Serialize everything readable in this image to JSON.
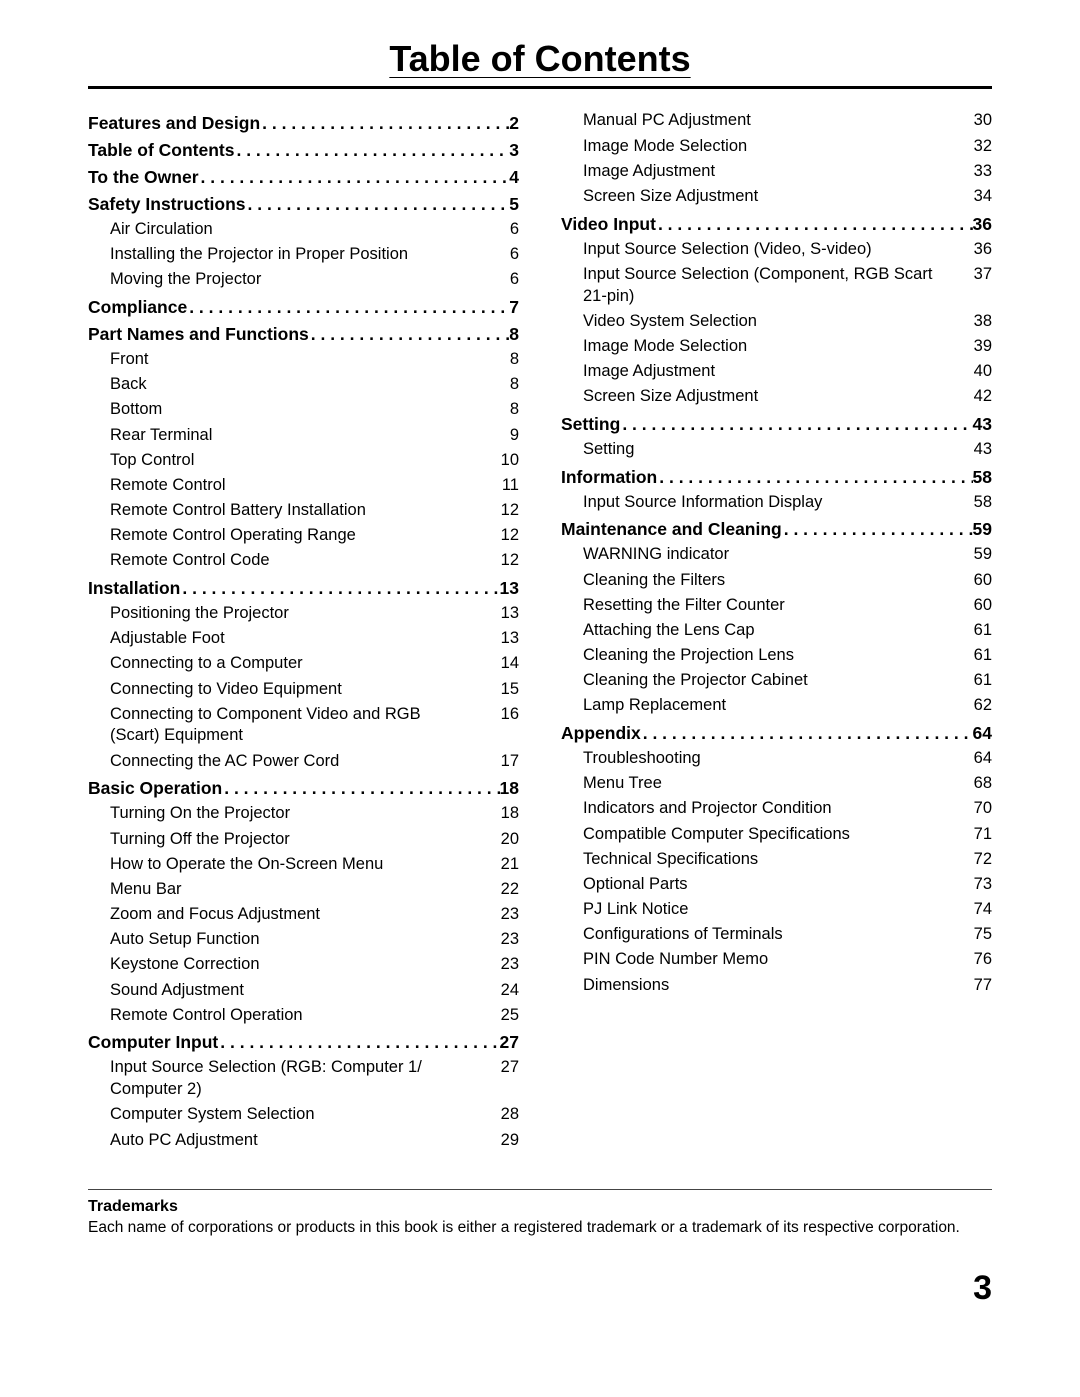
{
  "title": "Table of Contents",
  "page_number": "3",
  "trademarks": {
    "heading": "Trademarks",
    "text": "Each name of corporations or products in this book is either a registered trademark or a trademark of its respective corporation."
  },
  "left": [
    {
      "type": "section",
      "label": "Features and Design",
      "page": "2"
    },
    {
      "type": "section",
      "label": "Table of Contents",
      "page": "3"
    },
    {
      "type": "section",
      "label": "To the Owner",
      "page": "4"
    },
    {
      "type": "section",
      "label": "Safety Instructions",
      "page": "5"
    },
    {
      "type": "entry",
      "label": "Air Circulation",
      "page": "6"
    },
    {
      "type": "entry",
      "label": "Installing the Projector in Proper Position",
      "page": "6"
    },
    {
      "type": "entry",
      "label": "Moving the Projector",
      "page": "6"
    },
    {
      "type": "section",
      "label": "Compliance",
      "page": "7"
    },
    {
      "type": "section",
      "label": "Part Names and Functions",
      "page": "8"
    },
    {
      "type": "entry",
      "label": "Front",
      "page": "8"
    },
    {
      "type": "entry",
      "label": "Back",
      "page": "8"
    },
    {
      "type": "entry",
      "label": "Bottom",
      "page": "8"
    },
    {
      "type": "entry",
      "label": "Rear Terminal",
      "page": "9"
    },
    {
      "type": "entry",
      "label": "Top Control",
      "page": "10"
    },
    {
      "type": "entry",
      "label": "Remote Control",
      "page": "11"
    },
    {
      "type": "entry",
      "label": "Remote Control Battery Installation",
      "page": "12"
    },
    {
      "type": "entry",
      "label": "Remote Control Operating Range",
      "page": "12"
    },
    {
      "type": "entry",
      "label": "Remote Control Code",
      "page": "12"
    },
    {
      "type": "section",
      "label": "Installation",
      "page": "13"
    },
    {
      "type": "entry",
      "label": "Positioning the Projector",
      "page": "13"
    },
    {
      "type": "entry",
      "label": "Adjustable Foot",
      "page": "13"
    },
    {
      "type": "entry",
      "label": "Connecting to a Computer",
      "page": "14"
    },
    {
      "type": "entry",
      "label": "Connecting to Video Equipment",
      "page": "15"
    },
    {
      "type": "entry",
      "label": "Connecting to Component Video and RGB (Scart) Equipment",
      "page": "16"
    },
    {
      "type": "entry",
      "label": "Connecting the AC Power Cord",
      "page": "17"
    },
    {
      "type": "section",
      "label": "Basic Operation",
      "page": "18"
    },
    {
      "type": "entry",
      "label": "Turning On the Projector",
      "page": "18"
    },
    {
      "type": "entry",
      "label": "Turning Off the Projector",
      "page": "20"
    },
    {
      "type": "entry",
      "label": "How to Operate the On-Screen Menu",
      "page": "21"
    },
    {
      "type": "entry",
      "label": "Menu Bar",
      "page": "22"
    },
    {
      "type": "entry",
      "label": "Zoom and Focus Adjustment",
      "page": "23"
    },
    {
      "type": "entry",
      "label": "Auto Setup Function",
      "page": "23"
    },
    {
      "type": "entry",
      "label": "Keystone Correction",
      "page": "23"
    },
    {
      "type": "entry",
      "label": "Sound Adjustment",
      "page": "24"
    },
    {
      "type": "entry",
      "label": "Remote Control Operation",
      "page": "25"
    },
    {
      "type": "section",
      "label": "Computer Input",
      "page": "27"
    },
    {
      "type": "entry",
      "label": "Input Source Selection (RGB: Computer 1/ Computer 2)",
      "page": "27"
    },
    {
      "type": "entry",
      "label": "Computer System Selection",
      "page": "28"
    },
    {
      "type": "entry",
      "label": "Auto PC Adjustment",
      "page": "29"
    }
  ],
  "right": [
    {
      "type": "entry",
      "label": "Manual PC Adjustment",
      "page": "30"
    },
    {
      "type": "entry",
      "label": "Image Mode Selection",
      "page": "32"
    },
    {
      "type": "entry",
      "label": "Image Adjustment",
      "page": "33"
    },
    {
      "type": "entry",
      "label": "Screen Size Adjustment",
      "page": "34"
    },
    {
      "type": "section",
      "label": "Video Input",
      "page": "36"
    },
    {
      "type": "entry",
      "label": "Input Source Selection (Video, S-video)",
      "page": "36"
    },
    {
      "type": "entry",
      "label": "Input Source Selection (Component, RGB Scart 21-pin)",
      "page": "37"
    },
    {
      "type": "entry",
      "label": "Video System Selection",
      "page": "38"
    },
    {
      "type": "entry",
      "label": "Image Mode Selection",
      "page": "39"
    },
    {
      "type": "entry",
      "label": "Image Adjustment",
      "page": "40"
    },
    {
      "type": "entry",
      "label": "Screen Size Adjustment",
      "page": "42"
    },
    {
      "type": "section",
      "label": "Setting",
      "page": "43"
    },
    {
      "type": "entry",
      "label": "Setting",
      "page": "43"
    },
    {
      "type": "section",
      "label": "Information",
      "page": "58"
    },
    {
      "type": "entry",
      "label": "Input Source Information Display",
      "page": "58"
    },
    {
      "type": "section",
      "label": "Maintenance and Cleaning",
      "page": "59"
    },
    {
      "type": "entry",
      "label": "WARNING indicator",
      "page": "59"
    },
    {
      "type": "entry",
      "label": "Cleaning the Filters",
      "page": "60"
    },
    {
      "type": "entry",
      "label": "Resetting the Filter Counter",
      "page": "60"
    },
    {
      "type": "entry",
      "label": "Attaching the Lens Cap",
      "page": "61"
    },
    {
      "type": "entry",
      "label": "Cleaning the Projection Lens",
      "page": "61"
    },
    {
      "type": "entry",
      "label": "Cleaning the Projector Cabinet",
      "page": "61"
    },
    {
      "type": "entry",
      "label": "Lamp Replacement",
      "page": "62"
    },
    {
      "type": "section",
      "label": "Appendix",
      "page": "64"
    },
    {
      "type": "entry",
      "label": "Troubleshooting",
      "page": "64"
    },
    {
      "type": "entry",
      "label": "Menu Tree",
      "page": "68"
    },
    {
      "type": "entry",
      "label": "Indicators and Projector Condition",
      "page": "70"
    },
    {
      "type": "entry",
      "label": "Compatible Computer Specifications",
      "page": "71"
    },
    {
      "type": "entry",
      "label": "Technical Specifications",
      "page": "72"
    },
    {
      "type": "entry",
      "label": "Optional Parts",
      "page": "73"
    },
    {
      "type": "entry",
      "label": "PJ Link Notice",
      "page": "74"
    },
    {
      "type": "entry",
      "label": "Configurations of Terminals",
      "page": "75"
    },
    {
      "type": "entry",
      "label": "PIN Code Number Memo",
      "page": "76"
    },
    {
      "type": "entry",
      "label": "Dimensions",
      "page": "77"
    }
  ]
}
